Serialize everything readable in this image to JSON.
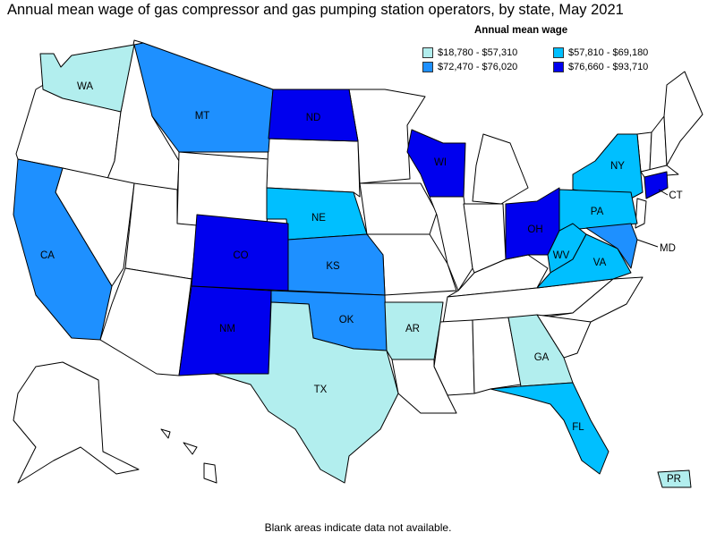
{
  "title": "Annual mean wage of gas compressor and gas pumping station operators, by state, May 2021",
  "legend": {
    "title": "Annual mean wage",
    "items": [
      {
        "range": "$18,780 - $57,310",
        "color": "#b2eeee"
      },
      {
        "range": "$57,810 - $69,180",
        "color": "#00bfff"
      },
      {
        "range": "$72,470 - $76,020",
        "color": "#1e90ff"
      },
      {
        "range": "$76,660 - $93,710",
        "color": "#0000ee"
      }
    ]
  },
  "footnote": "Blank areas indicate data not available.",
  "states": {
    "WA": {
      "label": "WA",
      "tier": 1
    },
    "MT": {
      "label": "MT",
      "tier": 3
    },
    "ND": {
      "label": "ND",
      "tier": 4
    },
    "WI": {
      "label": "WI",
      "tier": 4
    },
    "NY": {
      "label": "NY",
      "tier": 2
    },
    "CT": {
      "label": "CT",
      "tier": 4
    },
    "PA": {
      "label": "PA",
      "tier": 2
    },
    "OH": {
      "label": "OH",
      "tier": 4
    },
    "NE": {
      "label": "NE",
      "tier": 2
    },
    "CA": {
      "label": "CA",
      "tier": 3
    },
    "CO": {
      "label": "CO",
      "tier": 4
    },
    "KS": {
      "label": "KS",
      "tier": 3
    },
    "WV": {
      "label": "WV",
      "tier": 2
    },
    "VA": {
      "label": "VA",
      "tier": 2
    },
    "MD": {
      "label": "MD",
      "tier": 3
    },
    "OK": {
      "label": "OK",
      "tier": 3
    },
    "AR": {
      "label": "AR",
      "tier": 1
    },
    "NM": {
      "label": "NM",
      "tier": 4
    },
    "GA": {
      "label": "GA",
      "tier": 1
    },
    "TX": {
      "label": "TX",
      "tier": 1
    },
    "FL": {
      "label": "FL",
      "tier": 2
    },
    "PR": {
      "label": "PR",
      "tier": 1
    }
  }
}
